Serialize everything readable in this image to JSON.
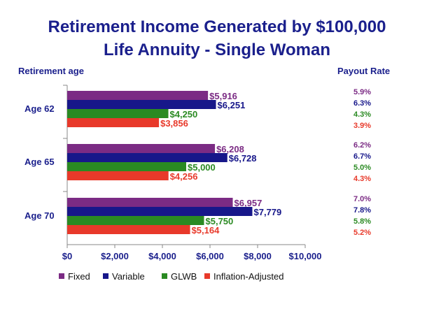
{
  "header": {
    "title_line1": "Retirement Income Generated by $100,000",
    "title_line2": "Life Annuity - Single Woman",
    "age_heading": "Retirement age",
    "rate_heading": "Payout Rate"
  },
  "chart_data": {
    "type": "bar",
    "orientation": "horizontal",
    "title": "Retirement Income Generated by $100,000 Life Annuity - Single Woman",
    "categories": [
      "Age 62",
      "Age 65",
      "Age 70"
    ],
    "series": [
      {
        "name": "Fixed",
        "color": "#7b2b84",
        "values": [
          5916,
          6208,
          6957
        ],
        "labels": [
          "$5,916",
          "$6,208",
          "$6,957"
        ],
        "payout_rates": [
          "5.9%",
          "6.2%",
          "7.0%"
        ]
      },
      {
        "name": "Variable",
        "color": "#17178a",
        "values": [
          6251,
          6728,
          7779
        ],
        "labels": [
          "$6,251",
          "$6,728",
          "$7,779"
        ],
        "payout_rates": [
          "6.3%",
          "6.7%",
          "7.8%"
        ]
      },
      {
        "name": "GLWB",
        "color": "#2a8a22",
        "values": [
          4250,
          5000,
          5750
        ],
        "labels": [
          "$4,250",
          "$5,000",
          "$5,750"
        ],
        "payout_rates": [
          "4.3%",
          "5.0%",
          "5.8%"
        ]
      },
      {
        "name": "Inflation-Adjusted",
        "color": "#e8392a",
        "values": [
          3856,
          4256,
          5164
        ],
        "labels": [
          "$3,856",
          "$4,256",
          "$5,164"
        ],
        "payout_rates": [
          "3.9%",
          "4.3%",
          "5.2%"
        ]
      }
    ],
    "xlim": [
      0,
      10000
    ],
    "xticks": [
      0,
      2000,
      4000,
      6000,
      8000,
      10000
    ],
    "xtick_labels": [
      "$0",
      "$2,000",
      "$4,000",
      "$6,000",
      "$8,000",
      "$10,000"
    ],
    "grid": false,
    "legend_position": "bottom-left"
  }
}
